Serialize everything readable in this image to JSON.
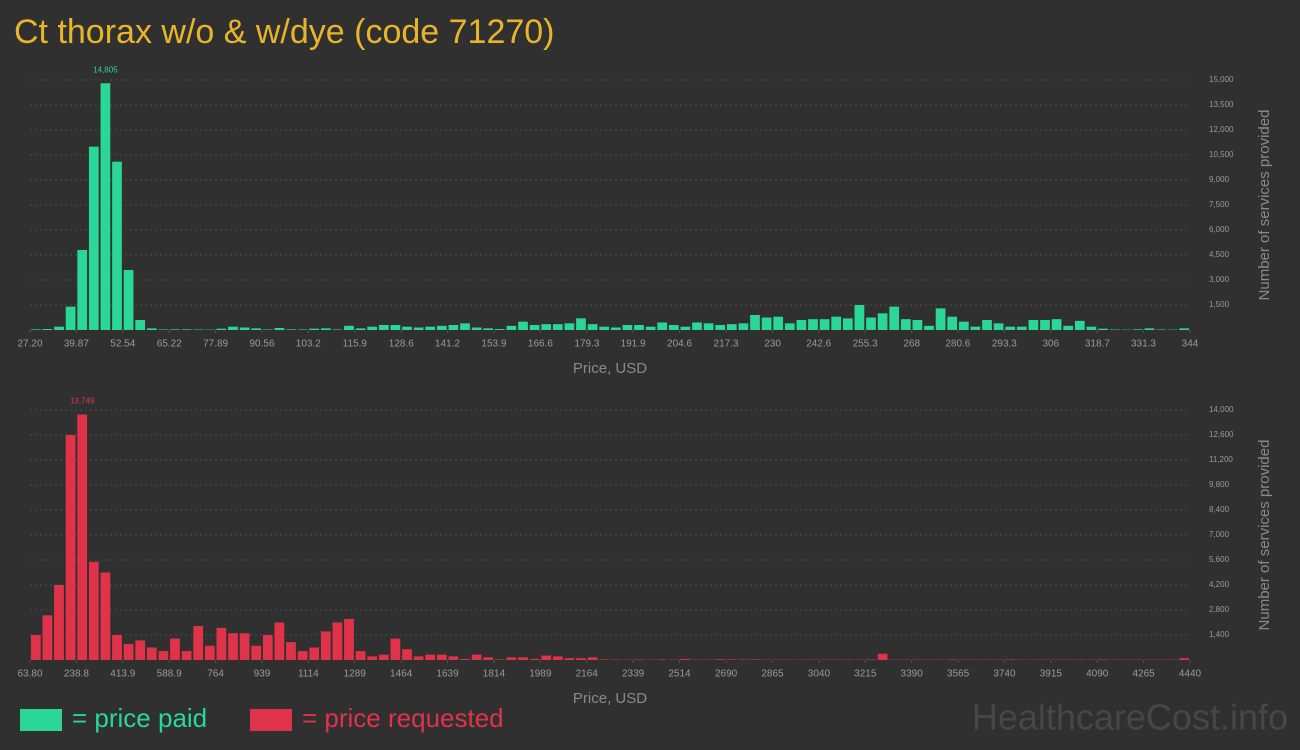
{
  "title": "Ct thorax w/o & w/dye (code 71270)",
  "watermark": "HealthcareCost.info",
  "chart_data": [
    {
      "type": "histogram",
      "x_label": "Price, USD",
      "y_label": "Number of services provided",
      "bins": [
        27.2,
        30.37,
        33.54,
        36.7,
        39.87,
        43.04,
        46.21,
        49.38,
        52.54,
        55.71,
        58.88,
        62.05,
        65.22,
        68.38,
        71.55,
        74.72,
        77.89,
        81.06,
        84.22,
        87.39,
        90.56,
        93.73,
        96.9,
        100.06,
        103.23,
        106.4,
        109.57,
        112.74,
        115.9,
        119.07,
        122.24,
        125.41,
        128.58,
        131.74,
        134.91,
        138.08,
        141.25,
        144.42,
        147.58,
        150.75,
        153.92,
        157.09,
        160.26,
        163.42,
        166.59,
        169.76,
        172.93,
        176.1,
        179.26,
        182.43,
        185.6,
        188.77,
        191.94,
        195.1,
        198.27,
        201.44,
        204.61,
        207.78,
        210.94,
        214.11,
        217.28,
        220.45,
        223.62,
        226.78,
        229.95,
        233.12,
        236.29,
        239.46,
        242.62,
        245.79,
        248.96,
        252.13,
        255.3,
        258.46,
        261.63,
        264.8,
        267.97,
        271.14,
        274.3,
        277.47,
        280.64,
        283.81,
        286.98,
        290.14,
        293.31,
        296.48,
        299.65,
        302.82,
        305.98,
        309.15,
        312.32,
        315.49,
        318.66,
        321.82,
        324.99,
        328.16,
        331.33,
        334.5,
        337.66,
        340.83,
        344
      ],
      "series": [
        {
          "name": "= price paid",
          "color": "#2ad69a",
          "values": [
            40,
            60,
            200,
            1400,
            4800,
            11000,
            14805,
            10100,
            3600,
            600,
            100,
            30,
            40,
            40,
            30,
            20,
            80,
            200,
            150,
            100,
            30,
            120,
            40,
            30,
            80,
            100,
            30,
            250,
            100,
            200,
            300,
            300,
            200,
            150,
            200,
            250,
            300,
            400,
            150,
            100,
            60,
            250,
            500,
            300,
            350,
            350,
            400,
            700,
            350,
            200,
            150,
            300,
            300,
            200,
            450,
            300,
            200,
            450,
            400,
            300,
            350,
            400,
            900,
            750,
            800,
            400,
            600,
            650,
            650,
            800,
            700,
            1500,
            750,
            1000,
            1400,
            650,
            600,
            250,
            1300,
            800,
            500,
            200,
            600,
            400,
            200,
            200,
            600,
            600,
            650,
            250,
            550,
            200,
            80,
            30,
            20,
            40,
            100,
            30,
            20,
            100
          ],
          "value_labels": [
            null,
            null,
            null,
            null,
            null,
            null,
            "14,805",
            null,
            null,
            null,
            null,
            null,
            null,
            null,
            null,
            null,
            null,
            null,
            null,
            null,
            null,
            null,
            null,
            null,
            null,
            null,
            null,
            null,
            null,
            null,
            null,
            null,
            null,
            null,
            null,
            null,
            null,
            null,
            null,
            null,
            null,
            null,
            null,
            null,
            null,
            null,
            null,
            null,
            null,
            null,
            null,
            null,
            null,
            null,
            null,
            null,
            null,
            null,
            null,
            null,
            null,
            null,
            null,
            null,
            null,
            null,
            null,
            null,
            null,
            null,
            null,
            null,
            null,
            null,
            null,
            null,
            null,
            null,
            null,
            null,
            null,
            null,
            null,
            null,
            null,
            null,
            null,
            null,
            null,
            null,
            null,
            null,
            null,
            null,
            null,
            null,
            null,
            null,
            null,
            null
          ]
        }
      ],
      "xlim": [
        27.2,
        344
      ],
      "xticks": [
        {
          "value": 27.2,
          "label": "27.20"
        },
        39.87,
        52.54,
        65.22,
        77.89,
        90.56,
        103.2,
        115.9,
        128.6,
        141.2,
        153.9,
        166.6,
        179.3,
        191.9,
        204.6,
        217.3,
        230,
        242.6,
        255.3,
        268,
        280.6,
        293.3,
        306,
        318.7,
        331.3,
        344
      ],
      "ylim": [
        0,
        15000
      ],
      "yticks": [
        {
          "value": 1500,
          "label": "1,500"
        },
        {
          "value": 3000,
          "label": "3,000"
        },
        {
          "value": 4500,
          "label": "4,500"
        },
        {
          "value": 6000,
          "label": "6,000"
        },
        {
          "value": 7500,
          "label": "7,500"
        },
        {
          "value": 9000,
          "label": "9,000"
        },
        {
          "value": 10500,
          "label": "10,500"
        },
        {
          "value": 12000,
          "label": "12,000"
        },
        {
          "value": 13500,
          "label": "13,500"
        },
        {
          "value": 15000,
          "label": "15,000"
        }
      ],
      "grid": true
    },
    {
      "type": "histogram",
      "x_label": "Price, USD",
      "y_label": "Number of services provided",
      "bins": [
        63.8,
        107.56,
        151.32,
        195.09,
        238.85,
        282.61,
        326.37,
        370.13,
        413.9,
        457.66,
        501.42,
        545.18,
        588.94,
        632.71,
        676.47,
        720.23,
        763.99,
        807.75,
        851.52,
        895.28,
        939.04,
        982.8,
        1026.56,
        1070.33,
        1114.09,
        1157.85,
        1201.61,
        1245.37,
        1289.14,
        1332.9,
        1376.66,
        1420.42,
        1464.18,
        1507.95,
        1551.71,
        1595.47,
        1639.23,
        1682.99,
        1726.76,
        1770.52,
        1814.28,
        1858.04,
        1901.8,
        1945.57,
        1989.33,
        2033.09,
        2076.85,
        2120.61,
        2164.38,
        2208.14,
        2251.9,
        2295.66,
        2339.42,
        2383.19,
        2426.95,
        2470.71,
        2514.47,
        2558.23,
        2602,
        2645.76,
        2689.52,
        2733.28,
        2777.04,
        2820.81,
        2864.57,
        2908.33,
        2952.09,
        2995.85,
        3039.62,
        3083.38,
        3127.14,
        3170.9,
        3214.66,
        3258.43,
        3302.19,
        3345.95,
        3389.71,
        3433.47,
        3477.24,
        3521,
        3564.76,
        3608.52,
        3652.28,
        3696.05,
        3739.81,
        3783.57,
        3827.33,
        3871.09,
        3914.86,
        3958.62,
        4002.38,
        4046.14,
        4089.9,
        4133.67,
        4177.43,
        4221.19,
        4264.95,
        4308.71,
        4352.48,
        4396.24,
        4440
      ],
      "series": [
        {
          "name": "= price requested",
          "color": "#e0334a",
          "values": [
            1400,
            2500,
            4200,
            12600,
            13749,
            5500,
            4900,
            1400,
            900,
            1100,
            700,
            500,
            1200,
            500,
            1900,
            800,
            1800,
            1500,
            1500,
            800,
            1400,
            2100,
            1000,
            500,
            700,
            1600,
            2100,
            2300,
            500,
            200,
            300,
            1200,
            600,
            200,
            300,
            300,
            200,
            60,
            300,
            150,
            30,
            150,
            150,
            60,
            250,
            200,
            100,
            100,
            150,
            30,
            20,
            20,
            30,
            20,
            30,
            20,
            60,
            20,
            20,
            40,
            30,
            30,
            30,
            20,
            20,
            20,
            20,
            20,
            20,
            20,
            20,
            20,
            30,
            350,
            20,
            20,
            20,
            20,
            20,
            30,
            20,
            20,
            20,
            20,
            30,
            20,
            20,
            20,
            20,
            20,
            20,
            20,
            30,
            20,
            20,
            20,
            20,
            20,
            20,
            100
          ],
          "value_labels": [
            null,
            null,
            null,
            null,
            "13,749",
            null,
            null,
            null,
            null,
            null,
            null,
            null,
            null,
            null,
            null,
            null,
            null,
            null,
            null,
            null,
            null,
            null,
            null,
            null,
            null,
            null,
            null,
            null,
            null,
            null,
            null,
            null,
            null,
            null,
            null,
            null,
            null,
            null,
            null,
            null,
            null,
            null,
            null,
            null,
            null,
            null,
            null,
            null,
            null,
            null,
            null,
            null,
            null,
            null,
            null,
            null,
            null,
            null,
            null,
            null,
            null,
            null,
            null,
            null,
            null,
            null,
            null,
            null,
            null,
            null,
            null,
            null,
            null,
            null,
            null,
            null,
            null,
            null,
            null,
            null,
            null,
            null,
            null,
            null,
            null,
            null,
            null,
            null,
            null,
            null,
            null,
            null,
            null,
            null,
            null,
            null,
            null,
            null,
            null,
            null
          ]
        }
      ],
      "xlim": [
        63.8,
        4440
      ],
      "xticks": [
        {
          "value": 63.8,
          "label": "63.80"
        },
        238.8,
        413.9,
        588.9,
        764,
        939,
        1114,
        1289,
        1464,
        1639,
        1814,
        1989,
        2164,
        2339,
        2514,
        2690,
        2865,
        3040,
        3215,
        3390,
        3565,
        3740,
        3915,
        4090,
        4265,
        4440
      ],
      "ylim": [
        0,
        14000
      ],
      "yticks": [
        {
          "value": 1400,
          "label": "1,400"
        },
        {
          "value": 2800,
          "label": "2,800"
        },
        {
          "value": 4200,
          "label": "4,200"
        },
        {
          "value": 5600,
          "label": "5,600"
        },
        {
          "value": 7000,
          "label": "7,000"
        },
        {
          "value": 8400,
          "label": "8,400"
        },
        {
          "value": 9800,
          "label": "9,800"
        },
        {
          "value": 11200,
          "label": "11,200"
        },
        {
          "value": 12600,
          "label": "12,600"
        },
        {
          "value": 14000,
          "label": "14,000"
        }
      ],
      "grid": true
    }
  ]
}
